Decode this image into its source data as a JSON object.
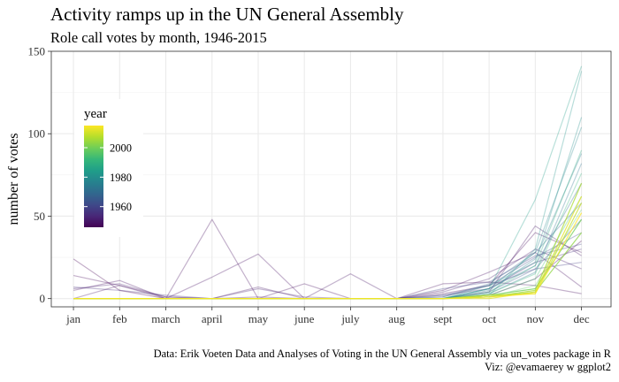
{
  "chart_data": {
    "type": "line",
    "title": "Activity ramps up in the UN General Assembly",
    "subtitle": "Role call votes by month, 1946-2015",
    "xlabel": "",
    "ylabel": "number of votes",
    "categories": [
      "jan",
      "feb",
      "march",
      "april",
      "may",
      "june",
      "july",
      "aug",
      "sept",
      "oct",
      "nov",
      "dec"
    ],
    "y_ticks": [
      0,
      50,
      100,
      150
    ],
    "ylim": [
      -5,
      150
    ],
    "grid": true,
    "legend": {
      "title": "year",
      "placement": "top-left inside",
      "type": "colorbar",
      "range": [
        1946,
        2015
      ],
      "ticks": [
        1960,
        1980,
        2000
      ],
      "palette": [
        "#440154",
        "#482878",
        "#3e4989",
        "#31688e",
        "#26828e",
        "#1f9e89",
        "#35b779",
        "#6ece58",
        "#b5de2b",
        "#fde725"
      ]
    },
    "series": [
      {
        "year": 1946,
        "values": [
          24,
          5,
          0,
          0,
          0,
          0,
          0,
          0,
          0,
          2,
          12,
          35
        ]
      },
      {
        "year": 1947,
        "values": [
          14,
          8,
          1,
          0,
          1,
          0,
          0,
          0,
          3,
          8,
          40,
          28
        ]
      },
      {
        "year": 1948,
        "values": [
          0,
          0,
          0,
          48,
          0,
          9,
          0,
          0,
          9,
          10,
          8,
          3
        ]
      },
      {
        "year": 1949,
        "values": [
          5,
          11,
          0,
          13,
          27,
          0,
          0,
          0,
          5,
          16,
          28,
          7
        ]
      },
      {
        "year": 1950,
        "values": [
          0,
          8,
          0,
          0,
          7,
          0,
          15,
          0,
          0,
          4,
          44,
          26
        ]
      },
      {
        "year": 1952,
        "values": [
          6,
          9,
          1,
          0,
          6,
          1,
          0,
          0,
          4,
          12,
          30,
          18
        ]
      },
      {
        "year": 1955,
        "values": [
          7,
          5,
          2,
          0,
          0,
          0,
          0,
          0,
          2,
          6,
          22,
          30
        ]
      },
      {
        "year": 1958,
        "values": [
          0,
          0,
          0,
          0,
          0,
          0,
          0,
          0,
          1,
          8,
          18,
          22
        ]
      },
      {
        "year": 1960,
        "values": [
          0,
          0,
          0,
          0,
          0,
          0,
          0,
          0,
          6,
          10,
          26,
          33
        ]
      },
      {
        "year": 1962,
        "values": [
          0,
          0,
          0,
          0,
          0,
          0,
          0,
          0,
          2,
          8,
          25,
          40
        ]
      },
      {
        "year": 1965,
        "values": [
          0,
          0,
          0,
          0,
          0,
          0,
          0,
          0,
          0,
          4,
          18,
          48
        ]
      },
      {
        "year": 1968,
        "values": [
          0,
          0,
          0,
          0,
          0,
          0,
          0,
          0,
          1,
          9,
          28,
          58
        ]
      },
      {
        "year": 1970,
        "values": [
          0,
          0,
          0,
          0,
          0,
          0,
          0,
          0,
          0,
          6,
          20,
          70
        ]
      },
      {
        "year": 1972,
        "values": [
          0,
          0,
          0,
          0,
          0,
          0,
          0,
          0,
          0,
          3,
          16,
          82
        ]
      },
      {
        "year": 1975,
        "values": [
          0,
          0,
          0,
          0,
          0,
          0,
          0,
          0,
          0,
          5,
          24,
          88
        ]
      },
      {
        "year": 1978,
        "values": [
          0,
          0,
          0,
          0,
          0,
          0,
          0,
          0,
          0,
          6,
          28,
          104
        ]
      },
      {
        "year": 1980,
        "values": [
          0,
          0,
          0,
          0,
          0,
          0,
          0,
          0,
          0,
          8,
          22,
          110
        ]
      },
      {
        "year": 1982,
        "values": [
          0,
          0,
          0,
          0,
          0,
          0,
          0,
          0,
          0,
          2,
          30,
          138
        ]
      },
      {
        "year": 1985,
        "values": [
          0,
          0,
          0,
          0,
          0,
          0,
          0,
          0,
          0,
          6,
          60,
          141
        ]
      },
      {
        "year": 1988,
        "values": [
          0,
          0,
          0,
          0,
          0,
          0,
          0,
          0,
          0,
          4,
          20,
          90
        ]
      },
      {
        "year": 1991,
        "values": [
          0,
          0,
          0,
          0,
          0,
          0,
          0,
          0,
          0,
          3,
          15,
          76
        ]
      },
      {
        "year": 1994,
        "values": [
          0,
          0,
          0,
          0,
          0,
          0,
          0,
          0,
          0,
          2,
          12,
          62
        ]
      },
      {
        "year": 1997,
        "values": [
          0,
          0,
          0,
          0,
          0,
          0,
          0,
          0,
          0,
          1,
          8,
          54
        ]
      },
      {
        "year": 2000,
        "values": [
          0,
          0,
          0,
          0,
          0,
          0,
          0,
          0,
          0,
          2,
          6,
          48
        ]
      },
      {
        "year": 2003,
        "values": [
          0,
          0,
          0,
          0,
          0,
          0,
          0,
          0,
          0,
          1,
          4,
          40
        ]
      },
      {
        "year": 2006,
        "values": [
          0,
          0,
          0,
          0,
          0,
          0,
          0,
          0,
          0,
          1,
          5,
          70
        ]
      },
      {
        "year": 2009,
        "values": [
          0,
          0,
          0,
          0,
          0,
          0,
          0,
          0,
          0,
          2,
          3,
          58
        ]
      },
      {
        "year": 2012,
        "values": [
          0,
          0,
          0,
          0,
          0,
          0,
          0,
          0,
          0,
          0,
          4,
          62
        ]
      },
      {
        "year": 2015,
        "values": [
          0,
          0,
          0,
          0,
          0,
          0,
          0,
          0,
          0,
          1,
          3,
          52
        ]
      }
    ]
  },
  "caption": {
    "line1": "Data: Erik Voeten Data and Analyses of Voting in the UN General Assembly via un_votes package in R",
    "line2": "Viz: @evamaerey w ggplot2"
  }
}
